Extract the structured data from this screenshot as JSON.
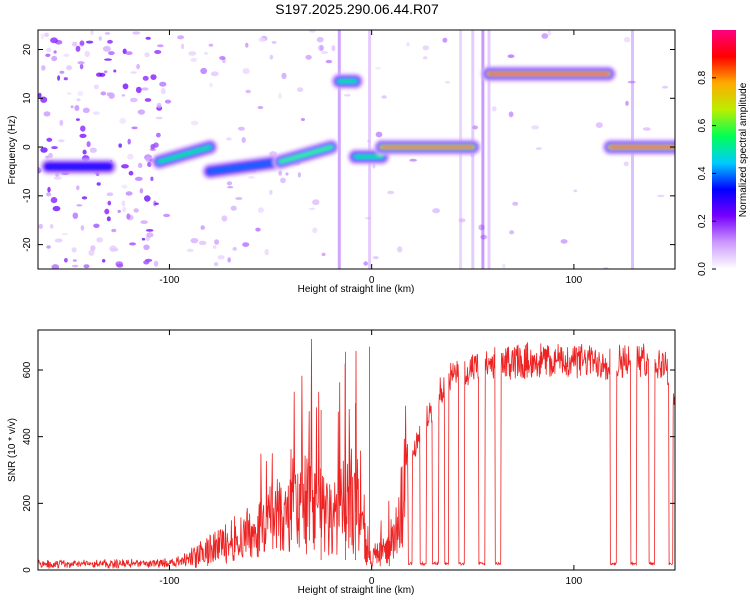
{
  "title": "S197.2025.290.06.44.R07",
  "colors": {
    "snr_line": "#ee2222",
    "axes": "#000000",
    "rainbow": [
      "#ffffff",
      "#cc99ff",
      "#7700ff",
      "#0000ff",
      "#00ccff",
      "#00ff55",
      "#bbee00",
      "#ffaa00",
      "#ff0000",
      "#ff0080"
    ]
  },
  "chart_data": [
    {
      "type": "heatmap",
      "name": "spectrogram",
      "xlabel": "Height of straight line (km)",
      "ylabel": "Frequency (Hz)",
      "xlim": [
        -165,
        150
      ],
      "ylim": [
        -25,
        24
      ],
      "xticks": [
        -100,
        0,
        100
      ],
      "yticks": [
        -20,
        -10,
        0,
        10,
        20
      ],
      "colorbar": {
        "label": "Normalized spectral amplitude",
        "range": [
          0,
          1
        ],
        "ticks": [
          0.0,
          0.2,
          0.4,
          0.6,
          0.8
        ]
      },
      "tracks": [
        {
          "x0": -160,
          "x1": -130,
          "f0": -4,
          "f1": -4,
          "amp": 0.35
        },
        {
          "x0": -105,
          "x1": -80,
          "f0": -3,
          "f1": 0,
          "amp": 0.55
        },
        {
          "x0": -80,
          "x1": -45,
          "f0": -5,
          "f1": -3,
          "amp": 0.4
        },
        {
          "x0": -45,
          "x1": -20,
          "f0": -3,
          "f1": 0,
          "amp": 0.6
        },
        {
          "x0": -16,
          "x1": -8,
          "f0": 13.5,
          "f1": 13.5,
          "amp": 0.55
        },
        {
          "x0": -8,
          "x1": 5,
          "f0": -2,
          "f1": -2,
          "amp": 0.55
        },
        {
          "x0": 5,
          "x1": 50,
          "f0": 0,
          "f1": 0,
          "amp": 0.85
        },
        {
          "x0": 58,
          "x1": 117,
          "f0": 15,
          "f1": 15,
          "amp": 0.95
        },
        {
          "x0": 118,
          "x1": 150,
          "f0": 0,
          "f1": 0,
          "amp": 0.9
        }
      ]
    },
    {
      "type": "line",
      "name": "snr",
      "xlabel": "Height of straight line (km)",
      "ylabel": "SNR (10 * v/v)",
      "xlim": [
        -165,
        150
      ],
      "ylim": [
        0,
        720
      ],
      "xticks": [
        -100,
        0,
        100
      ],
      "yticks": [
        0,
        200,
        400,
        600
      ],
      "series": [
        {
          "name": "SNR",
          "x": [
            -165,
            -150,
            -130,
            -110,
            -95,
            -88,
            -80,
            -72,
            -66,
            -60,
            -55,
            -50,
            -45,
            -40,
            -36,
            -32,
            -28,
            -25,
            -20,
            -15,
            -13,
            -10,
            -7,
            -5,
            -2,
            0,
            3,
            8,
            12,
            15,
            18,
            20,
            25,
            30,
            35,
            40,
            45,
            50,
            55,
            60,
            70,
            80,
            90,
            100,
            110,
            120,
            130,
            140,
            146,
            148,
            150
          ],
          "y": [
            18,
            18,
            18,
            20,
            25,
            40,
            60,
            80,
            100,
            110,
            130,
            150,
            160,
            170,
            190,
            200,
            220,
            180,
            140,
            180,
            200,
            210,
            200,
            150,
            40,
            40,
            50,
            60,
            90,
            200,
            280,
            330,
            440,
            480,
            550,
            580,
            590,
            600,
            610,
            620,
            625,
            630,
            625,
            630,
            625,
            625,
            630,
            630,
            610,
            520,
            510
          ]
        }
      ],
      "dropouts": [
        {
          "x0": 18,
          "x1": 20,
          "y": 15
        },
        {
          "x0": 24,
          "x1": 27,
          "y": 15
        },
        {
          "x0": 30,
          "x1": 33,
          "y": 15
        },
        {
          "x0": 36,
          "x1": 38,
          "y": 15
        },
        {
          "x0": 43,
          "x1": 46,
          "y": 15
        },
        {
          "x0": 53,
          "x1": 56,
          "y": 15
        },
        {
          "x0": 61,
          "x1": 64,
          "y": 15
        },
        {
          "x0": 118,
          "x1": 121,
          "y": 15
        },
        {
          "x0": 128,
          "x1": 131,
          "y": 15
        },
        {
          "x0": 137,
          "x1": 140,
          "y": 15
        },
        {
          "x0": 147,
          "x1": 149,
          "y": 15
        }
      ]
    }
  ]
}
